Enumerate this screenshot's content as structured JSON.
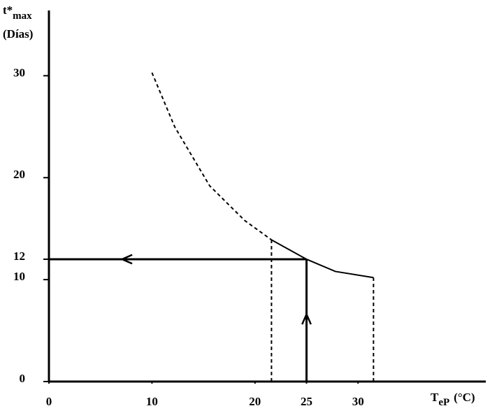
{
  "chart_data": {
    "type": "line",
    "y_label": "t*",
    "y_label_sub": "max",
    "y_label_unit": "(Días)",
    "x_label": "T",
    "x_label_sub": "eP",
    "x_label_unit": "(°C)",
    "xlim": [
      0,
      42.4
    ],
    "ylim": [
      0,
      36.4
    ],
    "xticks": [
      0,
      10,
      20,
      25,
      30
    ],
    "yticks": [
      0,
      10,
      12,
      20,
      30
    ],
    "color": "#000000",
    "series": [
      {
        "x": [
          10,
          12.2,
          15.6,
          19,
          21.6
        ],
        "values": [
          30.3,
          25,
          19.2,
          15.8,
          13.9
        ],
        "style": "dashed",
        "color": "#000000"
      },
      {
        "x": [
          21.6,
          25,
          27.8,
          31.5
        ],
        "values": [
          13.9,
          12,
          10.8,
          10.2
        ],
        "style": "solid",
        "color": "#000000"
      }
    ],
    "guides": [
      {
        "x": [
          21.6,
          21.6
        ],
        "values": [
          0,
          13.9
        ],
        "style": "dashed"
      },
      {
        "x": [
          31.5,
          31.5
        ],
        "values": [
          0,
          10.2
        ],
        "style": "dashed"
      }
    ],
    "arrows": [
      {
        "x": [
          25,
          0
        ],
        "values": [
          12,
          12
        ],
        "head": [
          7.1,
          12
        ],
        "direction": "left"
      },
      {
        "x": [
          25,
          25
        ],
        "values": [
          0,
          12
        ],
        "head": [
          25,
          6.6
        ],
        "direction": "up"
      }
    ]
  }
}
